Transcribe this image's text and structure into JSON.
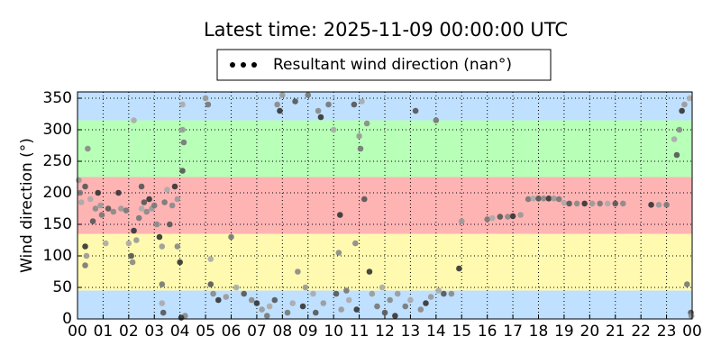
{
  "chart_data": {
    "type": "scatter",
    "title": "Latest time: 2025-11-09 00:00:00 UTC",
    "y_label": "Wind direction (°)",
    "legend_position": "top",
    "grid": true,
    "xlim": [
      0,
      24
    ],
    "ylim": [
      0,
      360
    ],
    "xticks": [
      {
        "value": 0,
        "label": "00"
      },
      {
        "value": 1,
        "label": "01"
      },
      {
        "value": 2,
        "label": "02"
      },
      {
        "value": 3,
        "label": "03"
      },
      {
        "value": 4,
        "label": "04"
      },
      {
        "value": 5,
        "label": "05"
      },
      {
        "value": 6,
        "label": "06"
      },
      {
        "value": 7,
        "label": "07"
      },
      {
        "value": 8,
        "label": "08"
      },
      {
        "value": 9,
        "label": "09"
      },
      {
        "value": 10,
        "label": "10"
      },
      {
        "value": 11,
        "label": "11"
      },
      {
        "value": 12,
        "label": "12"
      },
      {
        "value": 13,
        "label": "13"
      },
      {
        "value": 14,
        "label": "14"
      },
      {
        "value": 15,
        "label": "15"
      },
      {
        "value": 16,
        "label": "16"
      },
      {
        "value": 17,
        "label": "17"
      },
      {
        "value": 18,
        "label": "18"
      },
      {
        "value": 19,
        "label": "19"
      },
      {
        "value": 20,
        "label": "20"
      },
      {
        "value": 21,
        "label": "21"
      },
      {
        "value": 22,
        "label": "22"
      },
      {
        "value": 23,
        "label": "23"
      },
      {
        "value": 24,
        "label": "00"
      }
    ],
    "yticks": [
      0,
      50,
      100,
      150,
      200,
      250,
      300,
      350
    ],
    "bands": [
      {
        "from": 0,
        "to": 45,
        "color": "#bfe0ff"
      },
      {
        "from": 45,
        "to": 135,
        "color": "#fffab0"
      },
      {
        "from": 135,
        "to": 225,
        "color": "#ffb4b4"
      },
      {
        "from": 225,
        "to": 315,
        "color": "#b8ffb8"
      },
      {
        "from": 315,
        "to": 360,
        "color": "#bfe0ff"
      }
    ],
    "series": [
      {
        "name": "Resultant wind direction (nan°)",
        "color": "#000000",
        "x": [
          0.05,
          0.1,
          0.15,
          0.3,
          0.4,
          0.3,
          0.35,
          0.3,
          0.5,
          0.6,
          0.7,
          0.8,
          0.9,
          0.95,
          1.1,
          1.2,
          1.4,
          1.6,
          1.7,
          1.9,
          2.0,
          2.1,
          2.15,
          2.2,
          2.3,
          2.4,
          2.5,
          2.6,
          2.7,
          2.8,
          2.9,
          3.0,
          2.2,
          2.5,
          3.1,
          3.2,
          3.3,
          3.4,
          3.5,
          3.6,
          3.7,
          3.8,
          3.9,
          3.3,
          3.3,
          3.35,
          3.9,
          4.0,
          4.1,
          4.15,
          4.1,
          4.1,
          4.2,
          4.05,
          5.0,
          5.1,
          5.2,
          5.2,
          5.3,
          5.5,
          5.8,
          6.0,
          6.2,
          6.5,
          6.8,
          7.0,
          7.2,
          7.4,
          7.5,
          7.7,
          7.8,
          7.9,
          8.0,
          8.2,
          8.4,
          8.5,
          8.6,
          8.8,
          8.9,
          9.0,
          9.2,
          9.3,
          9.4,
          9.5,
          9.6,
          9.8,
          10.0,
          10.1,
          10.2,
          10.25,
          10.3,
          10.5,
          10.6,
          10.8,
          10.85,
          10.9,
          11.0,
          11.05,
          11.1,
          11.2,
          11.3,
          11.4,
          11.5,
          11.7,
          11.9,
          12.0,
          12.2,
          12.4,
          12.5,
          12.8,
          13.0,
          13.2,
          13.4,
          13.6,
          13.8,
          14.0,
          14.1,
          14.3,
          14.6,
          14.9,
          15.0,
          16.0,
          16.2,
          16.5,
          16.8,
          17.0,
          17.3,
          17.6,
          17.8,
          18.0,
          18.2,
          18.4,
          18.6,
          18.8,
          19.0,
          19.2,
          19.5,
          19.8,
          20.1,
          20.4,
          20.7,
          21.0,
          21.3,
          22.4,
          22.7,
          23.0,
          23.3,
          23.4,
          23.5,
          23.6,
          23.7,
          23.8,
          23.9,
          23.95,
          23.97
        ],
        "values": [
          220,
          200,
          185,
          210,
          270,
          115,
          100,
          85,
          190,
          155,
          175,
          200,
          180,
          165,
          120,
          175,
          170,
          200,
          175,
          172,
          120,
          100,
          90,
          140,
          125,
          160,
          175,
          185,
          170,
          190,
          175,
          180,
          315,
          210,
          150,
          130,
          115,
          185,
          205,
          150,
          180,
          210,
          190,
          55,
          25,
          10,
          115,
          90,
          300,
          280,
          340,
          235,
          5,
          2,
          350,
          340,
          95,
          55,
          40,
          30,
          35,
          130,
          50,
          40,
          30,
          25,
          15,
          5,
          20,
          30,
          340,
          330,
          355,
          10,
          25,
          345,
          75,
          20,
          50,
          355,
          40,
          10,
          330,
          320,
          25,
          340,
          300,
          40,
          105,
          165,
          15,
          45,
          30,
          340,
          120,
          15,
          290,
          270,
          345,
          190,
          310,
          75,
          40,
          20,
          50,
          10,
          30,
          5,
          40,
          20,
          30,
          330,
          15,
          25,
          35,
          315,
          45,
          40,
          40,
          80,
          155,
          158,
          160,
          162,
          162,
          163,
          165,
          190,
          191,
          191,
          191,
          191,
          191,
          190,
          184,
          183,
          183,
          183,
          183,
          183,
          183,
          183,
          183,
          181,
          181,
          181,
          285,
          260,
          300,
          330,
          340,
          55,
          350,
          10,
          5
        ]
      }
    ]
  }
}
